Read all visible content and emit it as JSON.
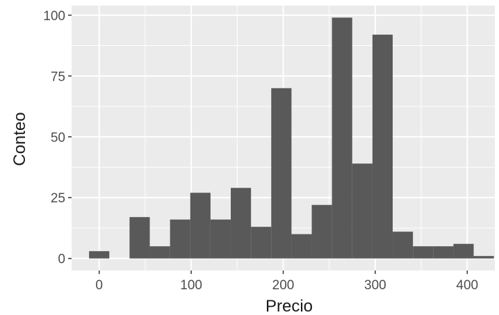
{
  "chart_data": {
    "type": "bar",
    "title": "",
    "xlabel": "Precio",
    "ylabel": "Conteo",
    "xlim": [
      -30,
      430
    ],
    "ylim": [
      -4.95,
      103.95
    ],
    "x_ticks": [
      0,
      100,
      200,
      300,
      400
    ],
    "y_ticks": [
      0,
      25,
      50,
      75,
      100
    ],
    "grid": true,
    "legend": "none",
    "colors": {
      "panel": "#ebebeb",
      "grid": "#ffffff",
      "bar": "#595959",
      "tick_text": "#4d4d4d",
      "title_text": "#1a1a1a"
    },
    "bins": [
      {
        "x0": -11,
        "x1": 11,
        "count": 3
      },
      {
        "x0": 11,
        "x1": 33,
        "count": 0
      },
      {
        "x0": 33,
        "x1": 55,
        "count": 17
      },
      {
        "x0": 55,
        "x1": 77,
        "count": 5
      },
      {
        "x0": 77,
        "x1": 99,
        "count": 16
      },
      {
        "x0": 99,
        "x1": 121,
        "count": 27
      },
      {
        "x0": 121,
        "x1": 143,
        "count": 16
      },
      {
        "x0": 143,
        "x1": 165,
        "count": 29
      },
      {
        "x0": 165,
        "x1": 187,
        "count": 13
      },
      {
        "x0": 187,
        "x1": 209,
        "count": 70
      },
      {
        "x0": 209,
        "x1": 231,
        "count": 10
      },
      {
        "x0": 231,
        "x1": 253,
        "count": 22
      },
      {
        "x0": 253,
        "x1": 275,
        "count": 99
      },
      {
        "x0": 275,
        "x1": 297,
        "count": 39
      },
      {
        "x0": 297,
        "x1": 319,
        "count": 92
      },
      {
        "x0": 319,
        "x1": 341,
        "count": 11
      },
      {
        "x0": 341,
        "x1": 363,
        "count": 5
      },
      {
        "x0": 363,
        "x1": 385,
        "count": 5
      },
      {
        "x0": 385,
        "x1": 407,
        "count": 6
      },
      {
        "x0": 407,
        "x1": 429,
        "count": 1
      }
    ]
  }
}
